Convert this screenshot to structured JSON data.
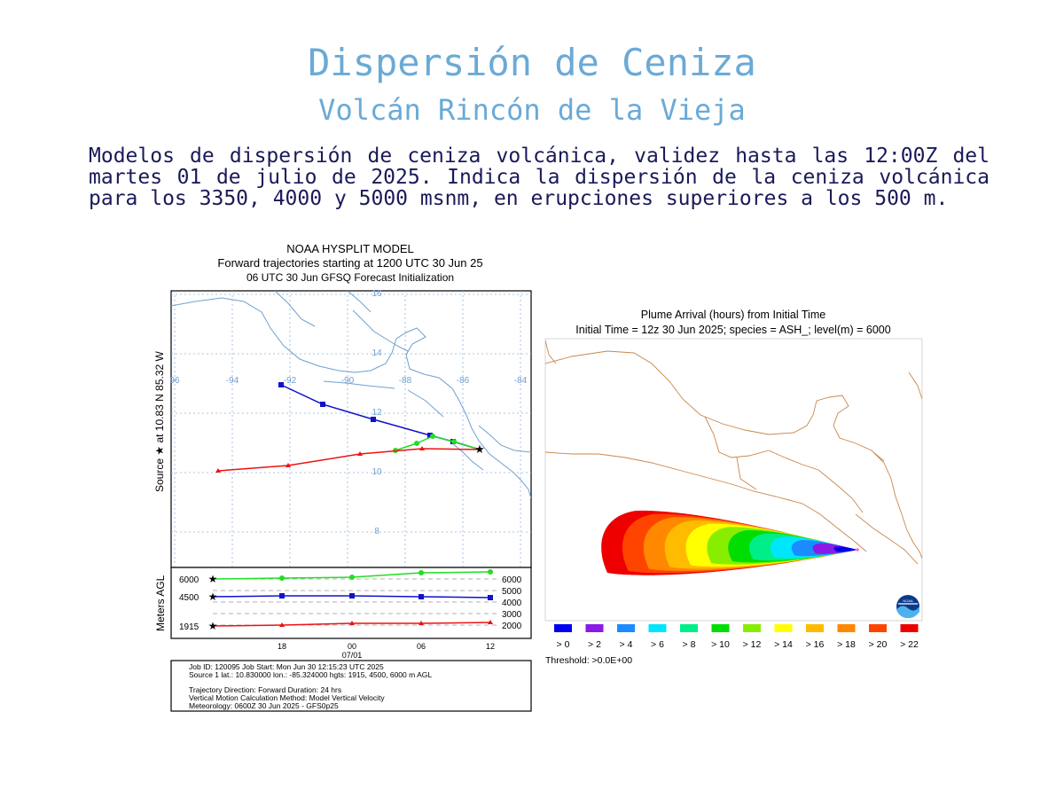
{
  "header": {
    "title": "Dispersión de Ceniza",
    "subtitle": "Volcán Rincón de la Vieja",
    "description": "Modelos de dispersión de ceniza volcánica, validez hasta las 12:00Z del martes 01 de julio de 2025. Indica la dispersión de la ceniza volcánica para los 3350, 4000 y 5000 msnm, en erupciones superiores a los 500 m."
  },
  "hysplit": {
    "title_1": "NOAA HYSPLIT MODEL",
    "title_2": "Forward trajectories starting at 1200 UTC 30 Jun 25",
    "title_3": "06 UTC 30 Jun    GFSQ  Forecast Initialization",
    "side_label": "Source ★  at   10.83 N   85.32 W",
    "lon_labels": [
      "96",
      "-94",
      "-92",
      "-90",
      "-88",
      "-86",
      "-84"
    ],
    "lat_labels": [
      "16",
      "14",
      "12",
      "10",
      "8"
    ],
    "agl_label": "Meters AGL",
    "agl_left": [
      "6000",
      "4500",
      "1915"
    ],
    "agl_right": [
      "6000",
      "5000",
      "4000",
      "3000",
      "2000"
    ],
    "time_ticks": [
      "18",
      "00",
      "06",
      "12"
    ],
    "date_label": "07/01",
    "info": [
      "Job ID: 120095                    Job Start: Mon Jun 30 12:15:23 UTC 2025",
      "Source 1 lat.: 10.830000  lon.: -85.324000  hgts: 1915, 4500, 6000 m AGL",
      "Trajectory Direction: Forward      Duration: 24 hrs",
      "Vertical Motion Calculation Method:      Model Vertical Velocity",
      "Meteorology: 0600Z 30 Jun 2025 - GFS0p25"
    ],
    "colors": {
      "t6000": "#22dd22",
      "t4500": "#1111cc",
      "t1915": "#ee1111"
    }
  },
  "plume": {
    "title_1": "Plume Arrival (hours) from Initial Time",
    "title_2": "Initial Time = 12z 30 Jun 2025;  species = ASH_;  level(m) =  6000",
    "legend": [
      {
        "label": "> 0",
        "color": "#0000ee"
      },
      {
        "label": "> 2",
        "color": "#8a1ae6"
      },
      {
        "label": "> 4",
        "color": "#1a8cff"
      },
      {
        "label": "> 6",
        "color": "#00e6ff"
      },
      {
        "label": "> 8",
        "color": "#00ee88"
      },
      {
        "label": "> 10",
        "color": "#00dd00"
      },
      {
        "label": "> 12",
        "color": "#88ee00"
      },
      {
        "label": "> 14",
        "color": "#ffff00"
      },
      {
        "label": "> 16",
        "color": "#ffbb00"
      },
      {
        "label": "> 18",
        "color": "#ff8800"
      },
      {
        "label": "> 20",
        "color": "#ff4400"
      },
      {
        "label": "> 22",
        "color": "#ee0000"
      }
    ],
    "threshold": "Threshold: >0.0E+00",
    "noaa_logo": "NOAA"
  }
}
